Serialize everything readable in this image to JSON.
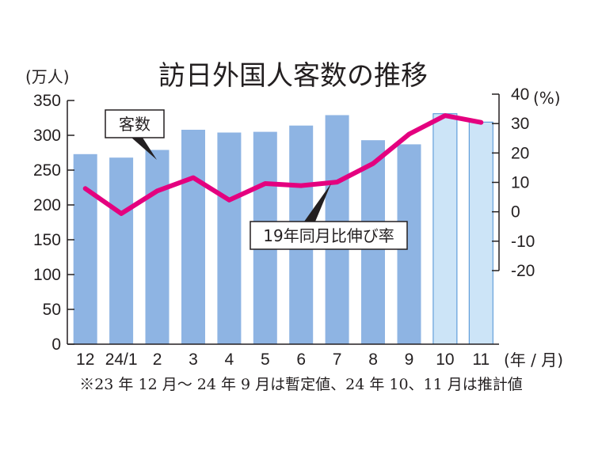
{
  "chart_data": {
    "type": "bar",
    "title": "訪日外国人客数の推移",
    "ylabel_left": "(万人)",
    "ylabel_right": "(%)",
    "xlabel": "(年 / 月)",
    "categories": [
      "12",
      "24/1",
      "2",
      "3",
      "4",
      "5",
      "6",
      "7",
      "8",
      "9",
      "10",
      "11"
    ],
    "ylim_left": [
      0,
      350
    ],
    "yticks_left": [
      0,
      50,
      100,
      150,
      200,
      250,
      300,
      350
    ],
    "ylim_right": [
      -20,
      40
    ],
    "yticks_right": [
      -20,
      -10,
      0,
      10,
      20,
      30,
      40
    ],
    "series": [
      {
        "name": "客数",
        "kind": "bar",
        "axis": "left",
        "values": [
          273,
          268,
          279,
          308,
          304,
          305,
          314,
          329,
          293,
          287,
          331,
          319
        ],
        "estimated": [
          false,
          false,
          false,
          false,
          false,
          false,
          false,
          false,
          false,
          false,
          true,
          true
        ]
      },
      {
        "name": "19年同月比伸び率",
        "kind": "line",
        "axis": "right",
        "values": [
          7.9,
          -0.6,
          7.1,
          11.6,
          4.0,
          9.6,
          8.9,
          10.1,
          16.4,
          26.4,
          32.7,
          30.4
        ]
      }
    ],
    "footnote": "※23 年 12 月～ 24 年 9 月は暫定値、24 年 10、11 月は推計値",
    "colors": {
      "bar": "#8eb4e3",
      "bar_estimated": "#cce4f7",
      "bar_estimated_stroke": "#4a8fd4",
      "line": "#e4007f",
      "axis": "#231f20"
    }
  }
}
